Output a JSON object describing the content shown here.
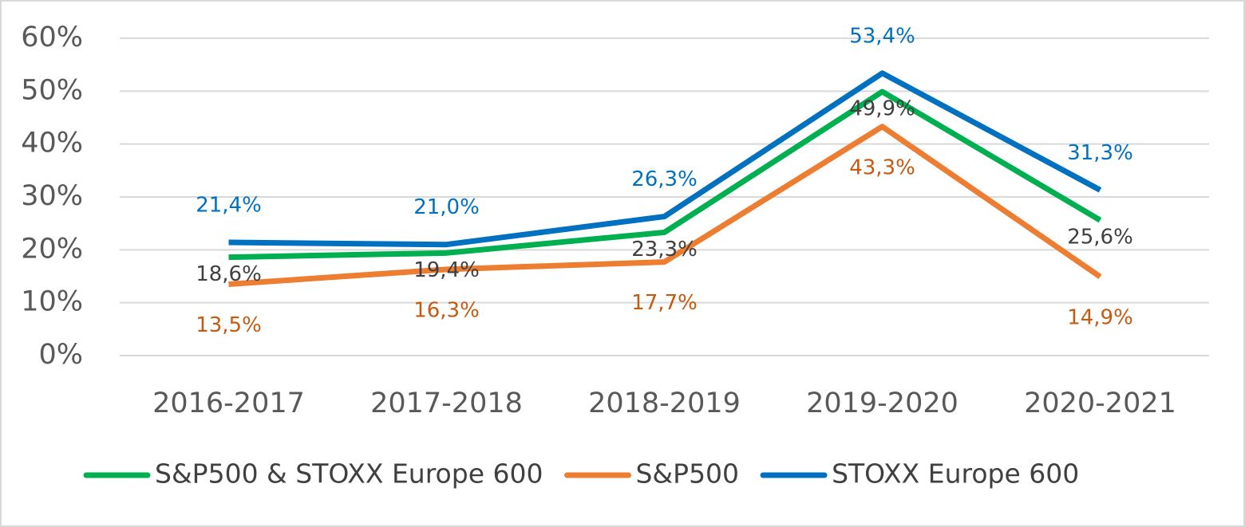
{
  "chart_data": {
    "type": "line",
    "categories": [
      "2016-2017",
      "2017-2018",
      "2018-2019",
      "2019-2020",
      "2020-2021"
    ],
    "series": [
      {
        "name": "S&P500 & STOXX Europe 600",
        "color": "#00b050",
        "label_color": "#404040",
        "values": [
          18.6,
          19.4,
          23.3,
          49.9,
          25.6
        ],
        "value_labels": [
          "18,6%",
          "19,4%",
          "23,3%",
          "49,9%",
          "25,6%"
        ]
      },
      {
        "name": "S&P500",
        "color": "#ed7d31",
        "label_color": "#c55a11",
        "values": [
          13.5,
          16.3,
          17.7,
          43.3,
          14.9
        ],
        "value_labels": [
          "13,5%",
          "16,3%",
          "17,7%",
          "43,3%",
          "14,9%"
        ]
      },
      {
        "name": "STOXX Europe 600",
        "color": "#0070c0",
        "label_color": "#0070c0",
        "values": [
          21.4,
          21.0,
          26.3,
          53.4,
          31.3
        ],
        "value_labels": [
          "21,4%",
          "21,0%",
          "26,3%",
          "53,4%",
          "31,3%"
        ]
      }
    ],
    "ylim": [
      0,
      60
    ],
    "yticks": [
      {
        "value": 0,
        "label": "0%"
      },
      {
        "value": 10,
        "label": "10%"
      },
      {
        "value": 20,
        "label": "20%"
      },
      {
        "value": 30,
        "label": "30%"
      },
      {
        "value": 40,
        "label": "40%"
      },
      {
        "value": 50,
        "label": "50%"
      },
      {
        "value": 60,
        "label": "60%"
      }
    ],
    "grid": true,
    "legend": "bottom"
  }
}
